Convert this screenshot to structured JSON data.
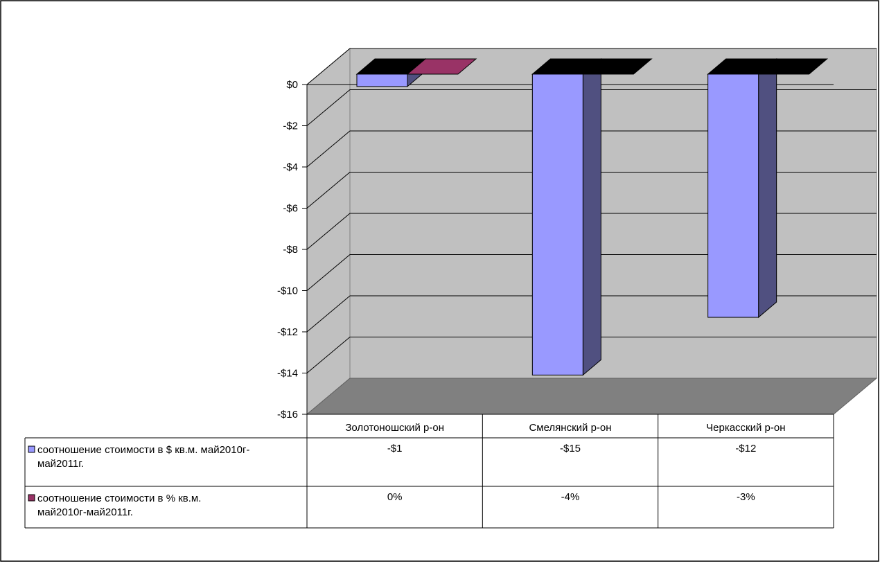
{
  "chart_data": {
    "type": "bar",
    "three_d": true,
    "categories": [
      "Золотоношский р-он",
      "Смелянский р-он",
      "Черкасский р-он"
    ],
    "series": [
      {
        "name": "соотношение стоимости в $ кв.м. май2010г-май2011г.",
        "values": [
          -0.6,
          -14.6,
          -11.8
        ],
        "labels": [
          "-$1",
          "-$15",
          "-$12"
        ],
        "color": "#9999ff",
        "side_color": "#505080"
      },
      {
        "name": "соотношение стоимости в % кв.м. май2010г-май2011г.",
        "values": [
          -0.0015,
          -0.04,
          -0.03
        ],
        "labels": [
          "0%",
          "-4%",
          "-3%"
        ],
        "color": "#993366",
        "side_color": "#000000"
      }
    ],
    "y_ticks": [
      "$0",
      "-$2",
      "-$4",
      "-$6",
      "-$8",
      "-$10",
      "-$12",
      "-$14",
      "-$16"
    ],
    "y_tick_values": [
      0,
      -2,
      -4,
      -6,
      -8,
      -10,
      -12,
      -14,
      -16
    ],
    "ylim": [
      -16,
      0
    ],
    "grid": true,
    "legend": "data-table",
    "colors": {
      "wall": "#c0c0c0",
      "floor": "#808080",
      "grid": "#000000"
    }
  }
}
